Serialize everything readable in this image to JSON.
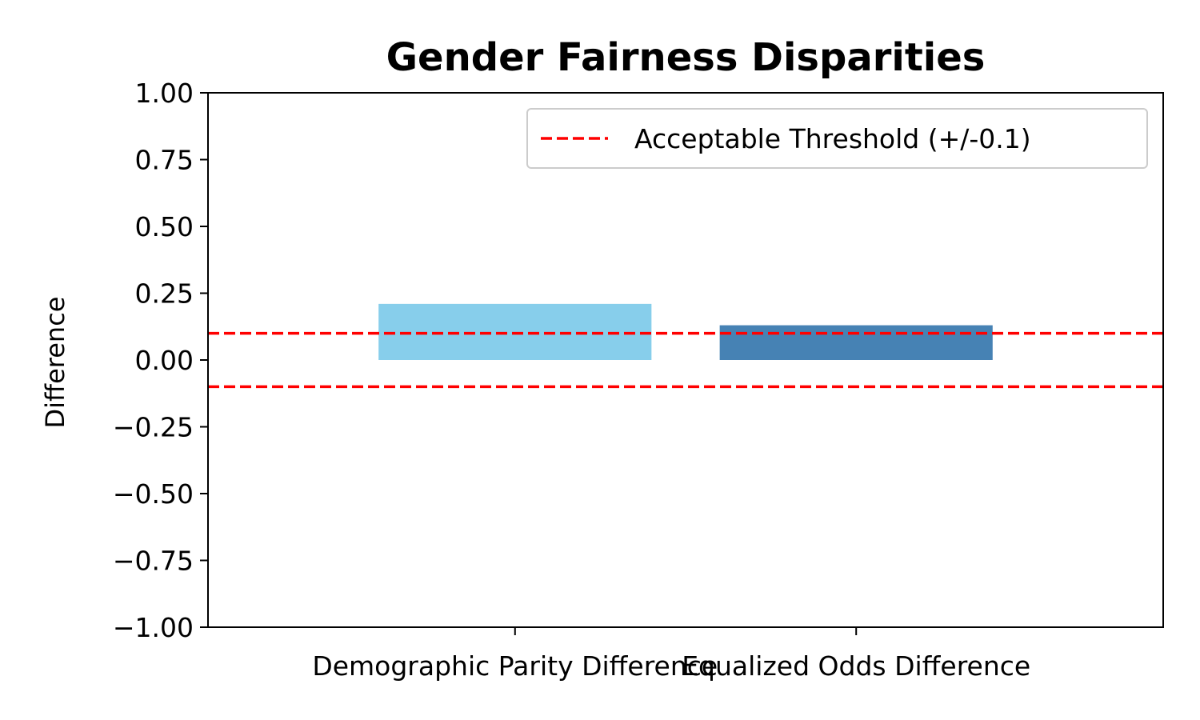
{
  "chart_data": {
    "type": "bar",
    "title": "Gender Fairness Disparities",
    "xlabel": "",
    "ylabel": "Difference",
    "categories": [
      "Demographic Parity Difference",
      "Equalized Odds Difference"
    ],
    "values": [
      0.21,
      0.13
    ],
    "bar_colors": [
      "#87CEEB",
      "#4682B4"
    ],
    "ylim": [
      -1.0,
      1.0
    ],
    "yticks": [
      1.0,
      0.75,
      0.5,
      0.25,
      0.0,
      -0.25,
      -0.5,
      -0.75,
      -1.0
    ],
    "ytick_labels": [
      "1.00",
      "0.75",
      "0.50",
      "0.25",
      "0.00",
      "−0.25",
      "−0.50",
      "−0.75",
      "−1.00"
    ],
    "threshold_lines": [
      0.1,
      -0.1
    ],
    "threshold_color": "#ff0000",
    "legend": {
      "placement": "top-right",
      "entries": [
        {
          "label": "Acceptable Threshold (+/-0.1)",
          "color": "#ff0000",
          "style": "dashed"
        }
      ]
    },
    "grid": false
  }
}
